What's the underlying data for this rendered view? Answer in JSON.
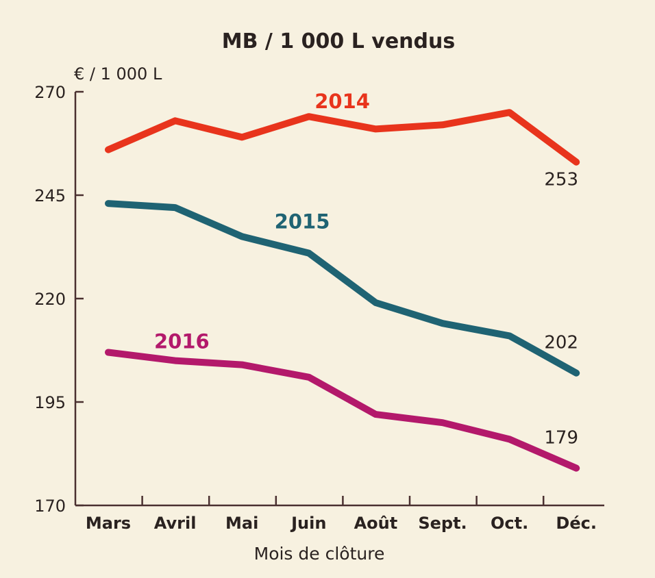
{
  "chart_data": {
    "type": "line",
    "title": "MB / 1 000 L vendus",
    "unit_label": "€ / 1 000 L",
    "xlabel": "Mois de clôture",
    "ylabel": "",
    "ylim": [
      170,
      270
    ],
    "yticks": [
      270,
      245,
      220,
      195,
      170
    ],
    "categories": [
      "Mars",
      "Avril",
      "Mai",
      "Juin",
      "Août",
      "Sept.",
      "Oct.",
      "Déc."
    ],
    "grid": false,
    "series": [
      {
        "name": "2014",
        "color": "#e8341c",
        "values": [
          256,
          263,
          259,
          264,
          261,
          262,
          265,
          253
        ],
        "end_label": "253",
        "label_anchor": {
          "index": 3.5,
          "value": 266
        }
      },
      {
        "name": "2015",
        "color": "#1f6373",
        "values": [
          243,
          242,
          235,
          231,
          219,
          214,
          211,
          202
        ],
        "end_label": "202",
        "label_anchor": {
          "index": 2.9,
          "value": 237
        }
      },
      {
        "name": "2016",
        "color": "#b3196b",
        "values": [
          207,
          205,
          204,
          201,
          192,
          190,
          186,
          179
        ],
        "end_label": "179",
        "label_anchor": {
          "index": 1.1,
          "value": 208
        }
      }
    ]
  }
}
